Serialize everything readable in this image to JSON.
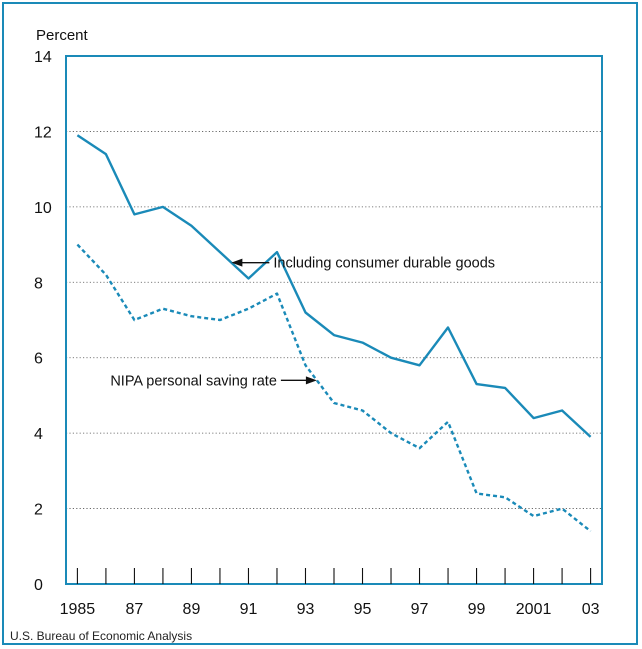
{
  "chart_data": {
    "type": "line",
    "ylabel": "Percent",
    "source": "U.S. Bureau of Economic Analysis",
    "ylim": [
      0,
      14
    ],
    "xlim": [
      1984.6,
      2003.4
    ],
    "yticks": [
      "0",
      "2",
      "4",
      "6",
      "8",
      "10",
      "12",
      "14"
    ],
    "xtick_labels": [
      {
        "year": 1985,
        "label": "1985"
      },
      {
        "year": 1987,
        "label": "87"
      },
      {
        "year": 1989,
        "label": "89"
      },
      {
        "year": 1991,
        "label": "91"
      },
      {
        "year": 1993,
        "label": "93"
      },
      {
        "year": 1995,
        "label": "95"
      },
      {
        "year": 1997,
        "label": "97"
      },
      {
        "year": 1999,
        "label": "99"
      },
      {
        "year": 2001,
        "label": "2001"
      },
      {
        "year": 2003,
        "label": "03"
      }
    ],
    "grid": "horizontal-dotted",
    "x": [
      1985,
      1986,
      1987,
      1988,
      1989,
      1990,
      1991,
      1992,
      1993,
      1994,
      1995,
      1996,
      1997,
      1998,
      1999,
      2000,
      2001,
      2002,
      2003
    ],
    "series": [
      {
        "name": "Including consumer durable goods",
        "style": "solid",
        "color": "#1a8ab8",
        "values": [
          11.9,
          11.4,
          9.8,
          10.0,
          9.5,
          8.8,
          8.1,
          8.8,
          7.2,
          6.6,
          6.4,
          6.0,
          5.8,
          6.8,
          5.3,
          5.2,
          4.4,
          4.6,
          3.9
        ]
      },
      {
        "name": "NIPA personal saving rate",
        "style": "dashed",
        "color": "#1a8ab8",
        "values": [
          9.0,
          8.2,
          7.0,
          7.3,
          7.1,
          7.0,
          7.3,
          7.7,
          5.8,
          4.8,
          4.6,
          4.0,
          3.6,
          4.3,
          2.4,
          2.3,
          1.8,
          2.0,
          1.4
        ]
      }
    ],
    "annotations": [
      {
        "text": "Including consumer durable goods",
        "series": 0,
        "arrow": "left",
        "at_year": 1990.4
      },
      {
        "text": "NIPA personal saving rate",
        "series": 1,
        "arrow": "right",
        "at_year": 1993.4
      }
    ]
  }
}
